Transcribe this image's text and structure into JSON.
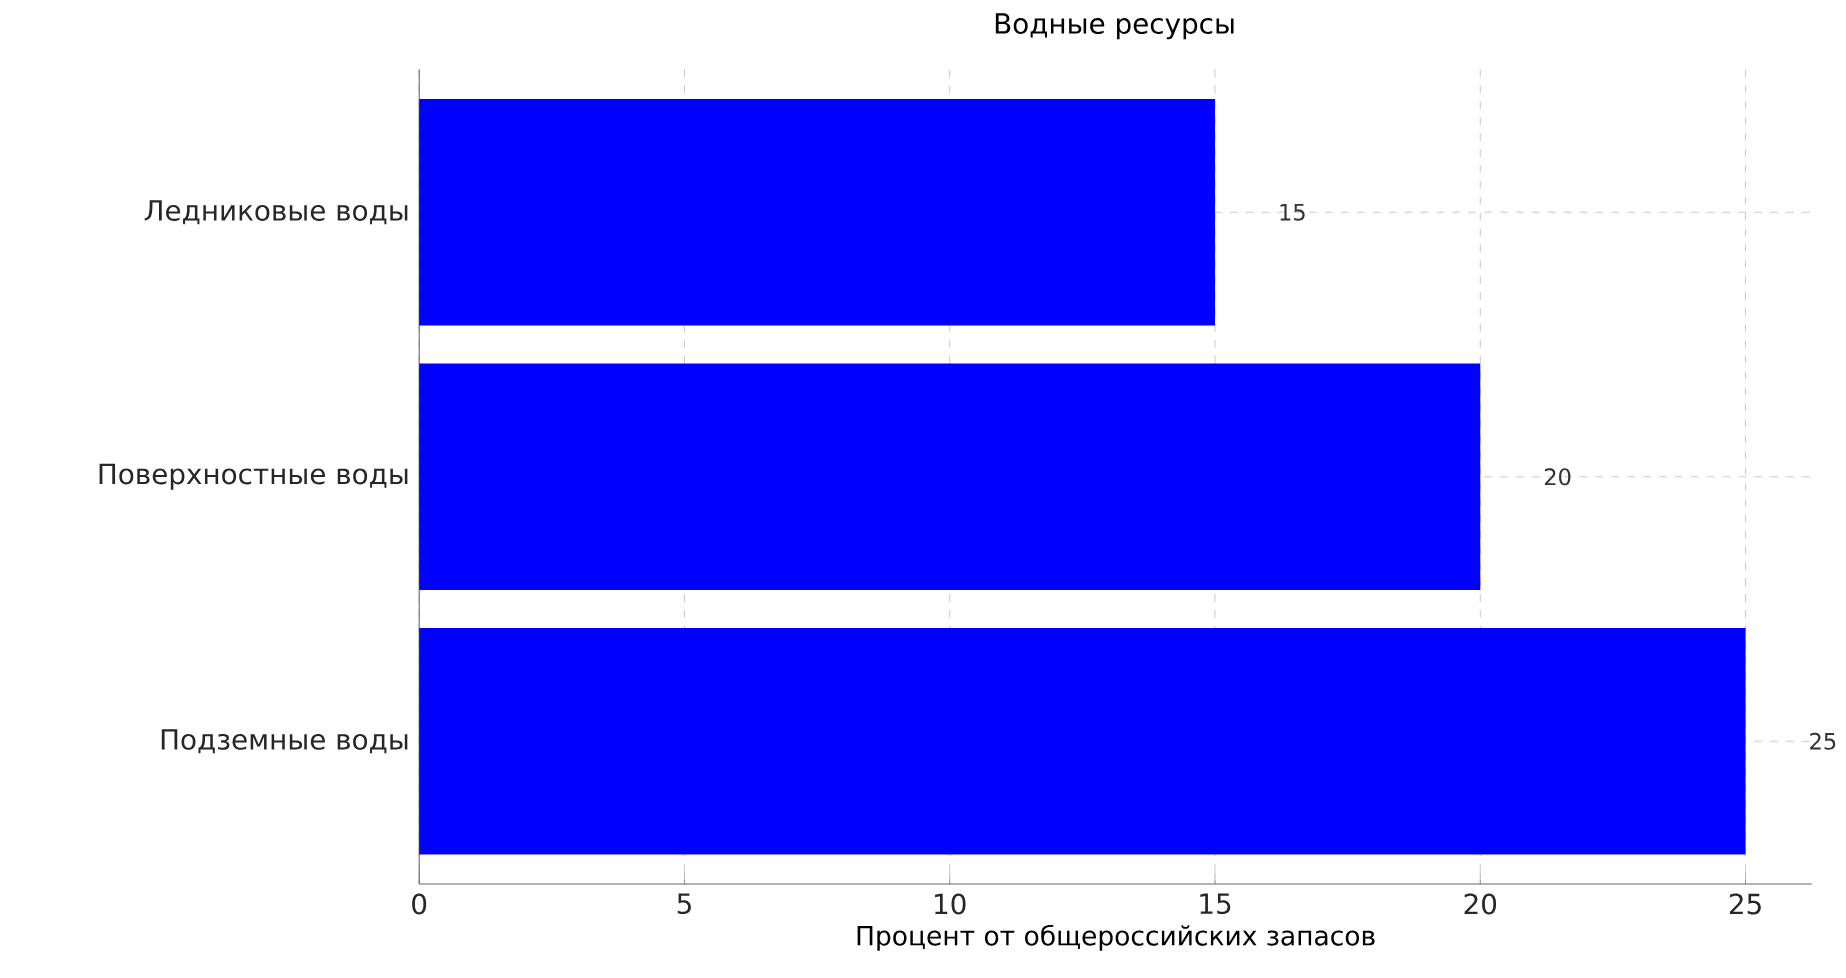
{
  "chart_data": {
    "type": "bar",
    "orientation": "horizontal",
    "title": "Водные ресурсы",
    "xlabel": "Процент от общероссийских запасов",
    "categories": [
      "Ледниковые воды",
      "Поверхностные воды",
      "Подземные воды"
    ],
    "values": [
      15,
      20,
      25
    ],
    "color": "#0000ff",
    "data_labels": true,
    "grid": true,
    "xlim": [
      0,
      26.25
    ],
    "xticks": [
      0,
      5,
      10,
      15,
      20,
      25
    ]
  }
}
